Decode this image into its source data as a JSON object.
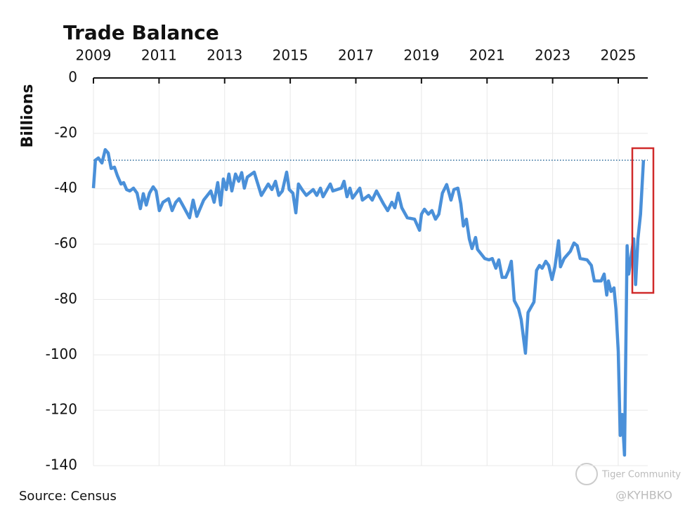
{
  "chart_data": {
    "type": "line",
    "title": "Trade Balance",
    "y_label": "Billions",
    "source": "Source: Census",
    "watermark": "Tiger Community",
    "credit": "@KYHBKO",
    "xlim": [
      2009,
      2025.9
    ],
    "xticks": [
      2009,
      2011,
      2013,
      2015,
      2017,
      2019,
      2021,
      2023,
      2025
    ],
    "ylim": [
      -140,
      0
    ],
    "yticks": [
      0,
      -20,
      -40,
      -60,
      -80,
      -100,
      -120,
      -140
    ],
    "grid": true,
    "reference_line": -29.7,
    "series": [
      {
        "name": "Trade Balance",
        "color": "#4a90d9",
        "x": [
          2009.0,
          2009.06,
          2009.15,
          2009.26,
          2009.36,
          2009.45,
          2009.54,
          2009.64,
          2009.73,
          2009.84,
          2009.92,
          2010.01,
          2010.11,
          2010.22,
          2010.33,
          2010.43,
          2010.52,
          2010.61,
          2010.71,
          2010.82,
          2010.91,
          2011.01,
          2011.12,
          2011.29,
          2011.4,
          2011.51,
          2011.61,
          2011.72,
          2011.93,
          2012.04,
          2012.15,
          2012.36,
          2012.58,
          2012.68,
          2012.79,
          2012.88,
          2012.96,
          2013.05,
          2013.13,
          2013.22,
          2013.33,
          2013.43,
          2013.52,
          2013.6,
          2013.69,
          2013.9,
          2014.12,
          2014.33,
          2014.44,
          2014.55,
          2014.65,
          2014.76,
          2014.89,
          2014.97,
          2015.08,
          2015.17,
          2015.25,
          2015.36,
          2015.49,
          2015.7,
          2015.81,
          2015.92,
          2016.0,
          2016.22,
          2016.3,
          2016.56,
          2016.64,
          2016.73,
          2016.82,
          2016.9,
          2017.12,
          2017.2,
          2017.39,
          2017.5,
          2017.63,
          2017.84,
          2017.97,
          2018.1,
          2018.19,
          2018.29,
          2018.4,
          2018.57,
          2018.79,
          2018.94,
          2019.0,
          2019.09,
          2019.21,
          2019.32,
          2019.43,
          2019.53,
          2019.64,
          2019.77,
          2019.9,
          2019.99,
          2020.11,
          2020.2,
          2020.28,
          2020.37,
          2020.46,
          2020.54,
          2020.65,
          2020.71,
          2020.93,
          2021.06,
          2021.16,
          2021.27,
          2021.36,
          2021.46,
          2021.57,
          2021.66,
          2021.74,
          2021.83,
          2021.96,
          2022.04,
          2022.17,
          2022.25,
          2022.43,
          2022.51,
          2022.6,
          2022.68,
          2022.79,
          2022.88,
          2022.98,
          2023.07,
          2023.18,
          2023.24,
          2023.35,
          2023.54,
          2023.65,
          2023.75,
          2023.84,
          2024.05,
          2024.18,
          2024.27,
          2024.48,
          2024.57,
          2024.65,
          2024.7,
          2024.78,
          2024.87,
          2024.93,
          2025.0,
          2025.06,
          2025.12,
          2025.19,
          2025.27,
          2025.32,
          2025.38,
          2025.47,
          2025.53,
          2025.6,
          2025.68,
          2025.77
        ],
        "values": [
          -39.8,
          -29.7,
          -28.9,
          -30.7,
          -25.9,
          -27.1,
          -32.7,
          -32.2,
          -35.3,
          -38.3,
          -37.8,
          -40.3,
          -40.8,
          -39.8,
          -41.6,
          -47.2,
          -41.8,
          -45.9,
          -41.6,
          -39.3,
          -40.8,
          -47.9,
          -44.9,
          -43.6,
          -47.9,
          -44.9,
          -43.6,
          -45.9,
          -50.5,
          -44.1,
          -50.0,
          -44.1,
          -40.8,
          -44.9,
          -37.8,
          -45.9,
          -36.5,
          -40.3,
          -34.7,
          -40.8,
          -34.7,
          -37.3,
          -34.2,
          -39.8,
          -35.8,
          -34.0,
          -42.4,
          -38.3,
          -40.3,
          -37.3,
          -42.4,
          -40.8,
          -34.0,
          -40.3,
          -41.6,
          -48.7,
          -38.3,
          -40.3,
          -42.4,
          -40.3,
          -42.4,
          -39.8,
          -42.9,
          -38.3,
          -40.8,
          -39.8,
          -37.3,
          -42.9,
          -39.8,
          -43.4,
          -39.8,
          -44.1,
          -42.4,
          -44.1,
          -40.8,
          -45.4,
          -47.9,
          -44.9,
          -46.9,
          -41.6,
          -46.9,
          -50.5,
          -51.0,
          -55.0,
          -49.2,
          -47.4,
          -49.2,
          -47.9,
          -51.0,
          -49.2,
          -41.6,
          -38.5,
          -44.1,
          -40.3,
          -39.8,
          -45.4,
          -53.5,
          -51.0,
          -58.1,
          -61.6,
          -57.6,
          -61.9,
          -65.2,
          -65.7,
          -65.2,
          -68.7,
          -65.7,
          -72.0,
          -72.0,
          -69.5,
          -66.2,
          -80.4,
          -83.4,
          -87.2,
          -99.4,
          -84.7,
          -80.9,
          -69.5,
          -67.7,
          -68.7,
          -66.2,
          -67.7,
          -72.8,
          -68.2,
          -58.8,
          -68.2,
          -65.2,
          -62.6,
          -59.6,
          -60.6,
          -65.2,
          -65.7,
          -67.7,
          -73.3,
          -73.3,
          -70.8,
          -78.4,
          -73.3,
          -77.1,
          -75.8,
          -83.4,
          -98.7,
          -129.1,
          -121.5,
          -136.2,
          -60.6,
          -70.8,
          -65.7,
          -58.1,
          -74.6,
          -58.1,
          -49.2,
          -29.7
        ]
      }
    ]
  }
}
